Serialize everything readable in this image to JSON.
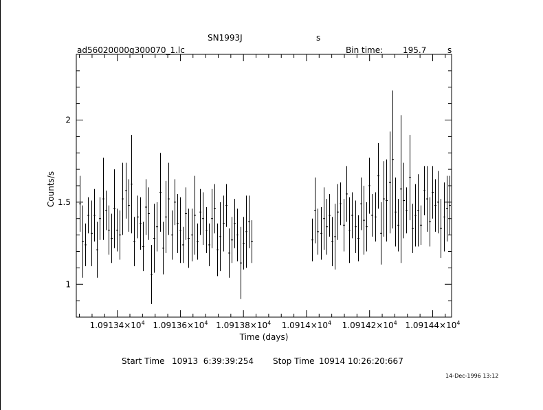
{
  "header": {
    "object_name": "SN1993J",
    "object_suffix": "s",
    "file_name": "ad56020000g300070_1.lc",
    "bin_time_label": "Bin time:",
    "bin_time_value": "195.7",
    "bin_time_unit": "s"
  },
  "footer": {
    "start_label": "Start Time",
    "start_value": "10913  6:39:39:254",
    "stop_label": "Stop Time",
    "stop_value": "10914 10:26:20:667",
    "timestamp": "14-Dec-1996 13:12"
  },
  "chart_data": {
    "type": "scatter",
    "title": "SN1993J",
    "xlabel": "Time (days)",
    "ylabel": "Counts/s",
    "xlim": [
      10913.27,
      10914.46
    ],
    "ylim": [
      0.8,
      2.4
    ],
    "x_ticks": [
      {
        "mantissa": "1.09134",
        "exp": "4"
      },
      {
        "mantissa": "1.09136",
        "exp": "4"
      },
      {
        "mantissa": "1.09138",
        "exp": "4"
      },
      {
        "mantissa": "1.0914",
        "exp": "4"
      },
      {
        "mantissa": "1.09142",
        "exp": "4"
      },
      {
        "mantissa": "1.09144",
        "exp": "4"
      }
    ],
    "x_tick_values": [
      10913.4,
      10913.6,
      10913.8,
      10914.0,
      10914.2,
      10914.4
    ],
    "y_ticks": [
      "1",
      "1.5",
      "2"
    ],
    "y_tick_values": [
      1,
      1.5,
      2
    ],
    "grid": false,
    "series": [
      {
        "x": [
          10913.281,
          10913.29,
          10913.299,
          10913.308,
          10913.317,
          10913.326,
          10913.336,
          10913.345,
          10913.354,
          10913.363,
          10913.372,
          10913.381,
          10913.39,
          10913.399,
          10913.408,
          10913.417,
          10913.426,
          10913.436,
          10913.445,
          10913.454,
          10913.463,
          10913.472,
          10913.481,
          10913.49,
          10913.499,
          10913.508,
          10913.517,
          10913.526,
          10913.536,
          10913.545,
          10913.554,
          10913.563,
          10913.572,
          10913.581,
          10913.59,
          10913.599,
          10913.608,
          10913.617,
          10913.626,
          10913.636,
          10913.645,
          10913.654,
          10913.663,
          10913.672,
          10913.681,
          10913.69,
          10913.699,
          10913.708,
          10913.717,
          10913.726,
          10913.736,
          10913.745,
          10913.754,
          10913.763,
          10913.772,
          10913.781,
          10913.79,
          10913.799,
          10913.808,
          10913.817,
          10913.826,
          10914.018,
          10914.027,
          10914.036,
          10914.045,
          10914.054,
          10914.063,
          10914.072,
          10914.081,
          10914.09,
          10914.099,
          10914.108,
          10914.117,
          10914.126,
          10914.136,
          10914.145,
          10914.154,
          10914.163,
          10914.172,
          10914.181,
          10914.19,
          10914.199,
          10914.208,
          10914.217,
          10914.226,
          10914.236,
          10914.245,
          10914.254,
          10914.263,
          10914.272,
          10914.281,
          10914.29,
          10914.299,
          10914.308,
          10914.317,
          10914.326,
          10914.336,
          10914.345,
          10914.354,
          10914.363,
          10914.372,
          10914.381,
          10914.39,
          10914.399,
          10914.408,
          10914.417,
          10914.426,
          10914.436,
          10914.445,
          10914.454
        ],
        "y": [
          1.49,
          1.26,
          1.24,
          1.42,
          1.31,
          1.42,
          1.21,
          1.4,
          1.52,
          1.45,
          1.33,
          1.28,
          1.46,
          1.33,
          1.3,
          1.52,
          1.57,
          1.48,
          1.61,
          1.26,
          1.41,
          1.37,
          1.23,
          1.47,
          1.43,
          1.06,
          1.28,
          1.35,
          1.56,
          1.22,
          1.41,
          1.52,
          1.3,
          1.5,
          1.37,
          1.33,
          1.24,
          1.43,
          1.28,
          1.3,
          1.42,
          1.26,
          1.44,
          1.4,
          1.33,
          1.24,
          1.4,
          1.46,
          1.21,
          1.29,
          1.37,
          1.48,
          1.19,
          1.27,
          1.37,
          1.3,
          1.13,
          1.25,
          1.32,
          1.38,
          1.26,
          1.27,
          1.45,
          1.32,
          1.31,
          1.4,
          1.35,
          1.42,
          1.26,
          1.29,
          1.44,
          1.49,
          1.36,
          1.55,
          1.33,
          1.42,
          1.35,
          1.28,
          1.49,
          1.39,
          1.35,
          1.6,
          1.42,
          1.41,
          1.66,
          1.31,
          1.52,
          1.51,
          1.62,
          1.76,
          1.44,
          1.36,
          1.58,
          1.51,
          1.45,
          1.65,
          1.34,
          1.42,
          1.45,
          1.36,
          1.57,
          1.52,
          1.38,
          1.56,
          1.48,
          1.5,
          1.34,
          1.41,
          1.46,
          1.48
        ],
        "err": [
          0.17,
          0.22,
          0.13,
          0.11,
          0.2,
          0.16,
          0.17,
          0.13,
          0.25,
          0.12,
          0.15,
          0.15,
          0.24,
          0.13,
          0.15,
          0.22,
          0.17,
          0.16,
          0.3,
          0.15,
          0.13,
          0.16,
          0.15,
          0.17,
          0.16,
          0.18,
          0.21,
          0.15,
          0.24,
          0.16,
          0.22,
          0.22,
          0.15,
          0.14,
          0.18,
          0.2,
          0.11,
          0.16,
          0.18,
          0.16,
          0.24,
          0.11,
          0.14,
          0.16,
          0.14,
          0.13,
          0.18,
          0.15,
          0.16,
          0.21,
          0.17,
          0.13,
          0.15,
          0.14,
          0.15,
          0.16,
          0.22,
          0.16,
          0.22,
          0.16,
          0.13,
          0.13,
          0.2,
          0.14,
          0.16,
          0.19,
          0.17,
          0.13,
          0.15,
          0.2,
          0.17,
          0.13,
          0.16,
          0.17,
          0.2,
          0.14,
          0.16,
          0.14,
          0.16,
          0.21,
          0.15,
          0.17,
          0.13,
          0.15,
          0.2,
          0.19,
          0.23,
          0.25,
          0.31,
          0.42,
          0.21,
          0.16,
          0.45,
          0.23,
          0.14,
          0.26,
          0.15,
          0.19,
          0.22,
          0.12,
          0.15,
          0.2,
          0.15,
          0.16,
          0.16,
          0.19,
          0.18,
          0.21,
          0.2,
          0.18
        ]
      }
    ]
  }
}
